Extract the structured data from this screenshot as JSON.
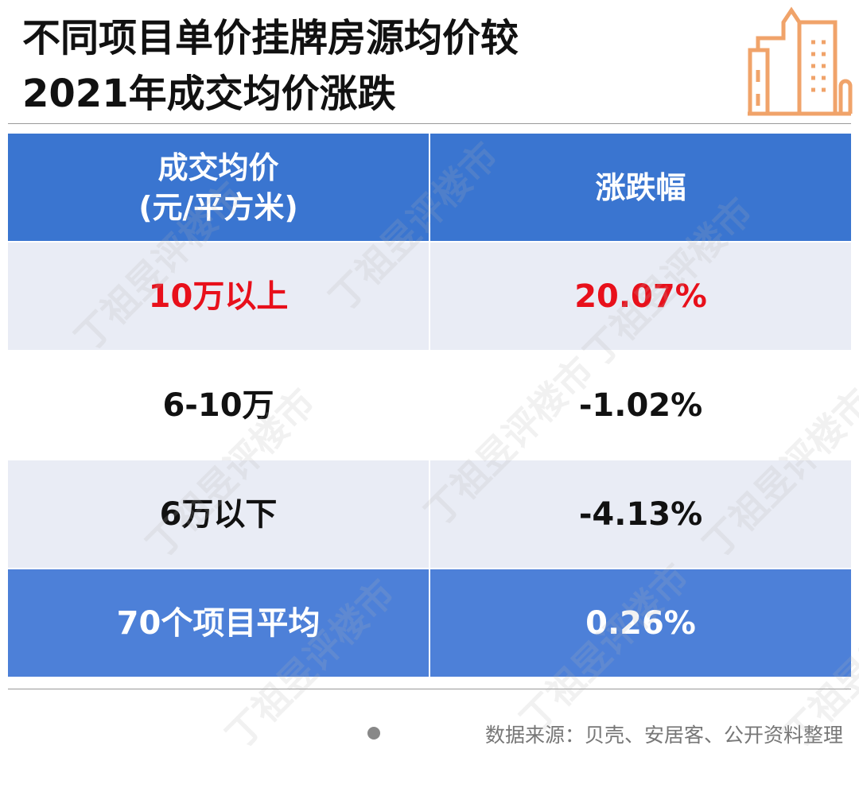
{
  "header": {
    "title_lines": [
      "不同项目单价挂牌房源均价较",
      "2021年成交均价涨跌"
    ]
  },
  "table": {
    "columns": [
      "成交均价\n(元/平方米)",
      "涨跌幅"
    ],
    "rows": [
      [
        "10万以上",
        "20.07%"
      ],
      [
        "6-10万",
        "-1.02%"
      ],
      [
        "6万以下",
        "-4.13%"
      ],
      [
        "70个项目平均",
        "0.26%"
      ]
    ]
  },
  "footer": {
    "source": "数据来源：贝壳、安居客、公开资料整理"
  },
  "watermark": "丁祖昱评楼市"
}
